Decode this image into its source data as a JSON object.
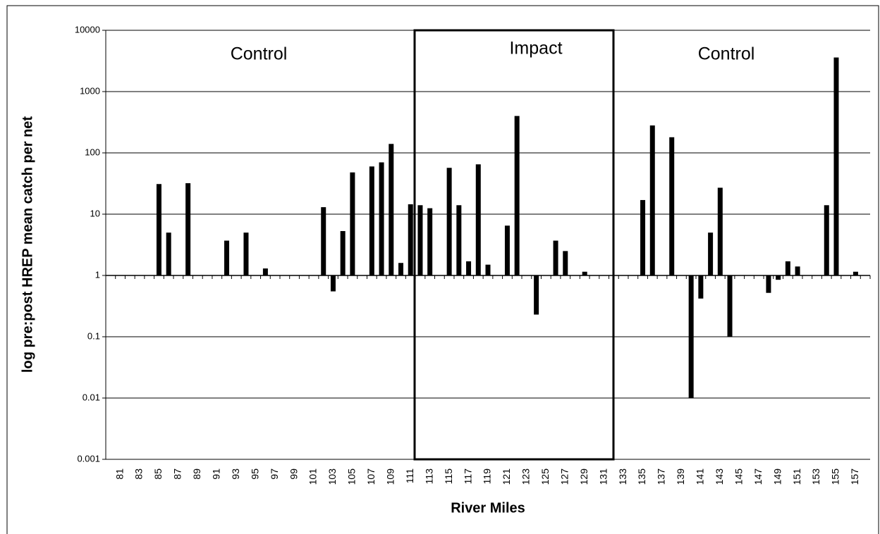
{
  "chart_data": {
    "type": "bar",
    "y_label": "log pre:post HREP mean catch per net",
    "x_label": "River Miles",
    "annotations": [
      "Control",
      "Impact",
      "Control"
    ],
    "log_scale": true,
    "grid": true,
    "color": "#000000",
    "baseline": 1,
    "ylim": [
      0.001,
      10000
    ],
    "yticks": [
      0.001,
      0.01,
      0.1,
      1,
      10,
      100,
      1000,
      10000
    ],
    "categories": [
      null,
      "81",
      null,
      "83",
      null,
      "85",
      null,
      "87",
      null,
      "89",
      null,
      "91",
      null,
      "93",
      null,
      "95",
      null,
      "97",
      null,
      "99",
      null,
      "101",
      null,
      "103",
      null,
      "105",
      null,
      "107",
      null,
      "109",
      null,
      "111",
      null,
      "113",
      null,
      "115",
      null,
      "117",
      null,
      "119",
      null,
      "121",
      null,
      "123",
      null,
      "125",
      null,
      "127",
      null,
      "129",
      null,
      "131",
      null,
      "133",
      null,
      "135",
      null,
      "137",
      null,
      "139",
      null,
      "141",
      null,
      "143",
      null,
      "145",
      null,
      "147",
      null,
      "149",
      null,
      "151",
      null,
      "153",
      null,
      "155",
      null,
      "157",
      null
    ],
    "values": [
      null,
      null,
      null,
      null,
      null,
      31,
      5,
      null,
      32,
      null,
      null,
      null,
      3.7,
      null,
      5,
      null,
      1.3,
      null,
      null,
      null,
      null,
      null,
      13,
      0.55,
      5.3,
      48,
      null,
      60,
      70,
      140,
      1.6,
      14.5,
      14,
      12.5,
      null,
      57,
      14,
      1.7,
      65,
      1.5,
      null,
      6.5,
      400,
      null,
      0.23,
      null,
      3.7,
      2.5,
      null,
      1.15,
      null,
      null,
      null,
      null,
      null,
      17,
      280,
      null,
      180,
      null,
      0.01,
      0.42,
      5,
      27,
      0.1,
      null,
      null,
      null,
      0.52,
      0.85,
      1.7,
      1.4,
      null,
      null,
      14,
      3600,
      null,
      1.15,
      null
    ]
  }
}
